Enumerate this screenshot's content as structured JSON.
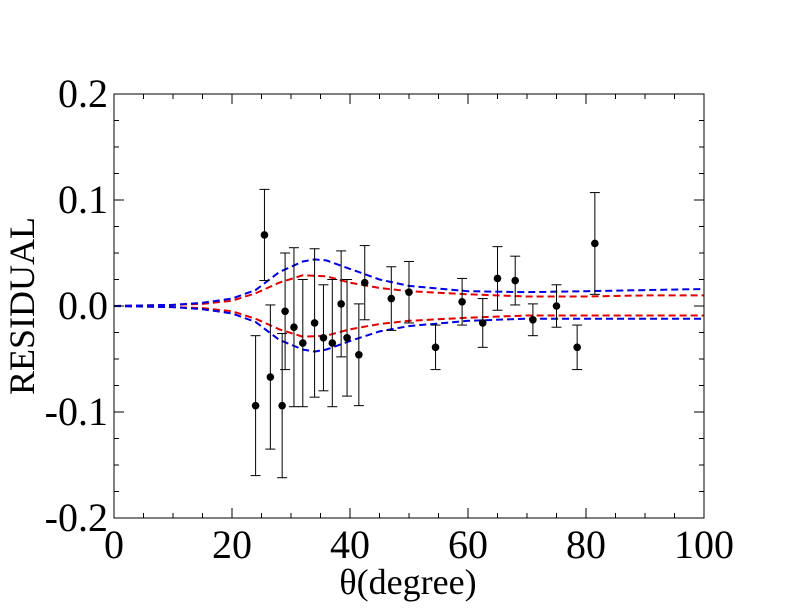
{
  "chart_data": {
    "type": "scatter",
    "title": "",
    "xlabel": "θ(degree)",
    "ylabel": "RESIDUAL",
    "xlim": [
      0,
      100
    ],
    "ylim": [
      -0.2,
      0.2
    ],
    "x_ticks": [
      0,
      20,
      40,
      60,
      80,
      100
    ],
    "x_tick_labels": [
      "0",
      "20",
      "40",
      "60",
      "80",
      "100"
    ],
    "y_ticks": [
      -0.2,
      -0.1,
      0.0,
      0.1,
      0.2
    ],
    "y_tick_labels": [
      "-0.2",
      "-0.1",
      "0.0",
      "0.1",
      "0.2"
    ],
    "grid": false,
    "points": [
      {
        "x": 24,
        "y": -0.094,
        "err": 0.066
      },
      {
        "x": 25.5,
        "y": 0.067,
        "err": 0.043
      },
      {
        "x": 26.5,
        "y": -0.067,
        "err": 0.068
      },
      {
        "x": 28.5,
        "y": -0.094,
        "err": 0.068
      },
      {
        "x": 29,
        "y": -0.005,
        "err": 0.055
      },
      {
        "x": 30.5,
        "y": -0.02,
        "err": 0.075
      },
      {
        "x": 32,
        "y": -0.035,
        "err": 0.06
      },
      {
        "x": 34,
        "y": -0.016,
        "err": 0.07
      },
      {
        "x": 35.5,
        "y": -0.03,
        "err": 0.05
      },
      {
        "x": 37,
        "y": -0.035,
        "err": 0.06
      },
      {
        "x": 38.5,
        "y": 0.002,
        "err": 0.05
      },
      {
        "x": 39.5,
        "y": -0.03,
        "err": 0.055
      },
      {
        "x": 41.5,
        "y": -0.046,
        "err": 0.048
      },
      {
        "x": 42.5,
        "y": 0.022,
        "err": 0.035
      },
      {
        "x": 47,
        "y": 0.007,
        "err": 0.03
      },
      {
        "x": 50,
        "y": 0.013,
        "err": 0.029
      },
      {
        "x": 54.5,
        "y": -0.039,
        "err": 0.021
      },
      {
        "x": 59,
        "y": 0.004,
        "err": 0.022
      },
      {
        "x": 62.5,
        "y": -0.016,
        "err": 0.023
      },
      {
        "x": 65,
        "y": 0.026,
        "err": 0.03
      },
      {
        "x": 68,
        "y": 0.024,
        "err": 0.023
      },
      {
        "x": 71,
        "y": -0.013,
        "err": 0.015
      },
      {
        "x": 75,
        "y": 0.0,
        "err": 0.02
      },
      {
        "x": 78.5,
        "y": -0.039,
        "err": 0.021
      },
      {
        "x": 81.5,
        "y": 0.059,
        "err": 0.048
      }
    ],
    "series": [
      {
        "name": "red-band-upper",
        "color": "#e00000",
        "x": [
          0,
          10,
          15,
          20,
          24,
          28,
          32,
          36,
          40,
          45,
          50,
          60,
          70,
          80,
          90,
          100
        ],
        "y": [
          0,
          0.001,
          0.002,
          0.005,
          0.012,
          0.022,
          0.029,
          0.028,
          0.022,
          0.017,
          0.014,
          0.011,
          0.009,
          0.009,
          0.01,
          0.01
        ]
      },
      {
        "name": "red-band-lower",
        "color": "#e00000",
        "x": [
          0,
          10,
          15,
          20,
          24,
          28,
          32,
          36,
          40,
          45,
          50,
          60,
          70,
          80,
          90,
          100
        ],
        "y": [
          0,
          -0.001,
          -0.002,
          -0.005,
          -0.012,
          -0.022,
          -0.029,
          -0.028,
          -0.022,
          -0.017,
          -0.014,
          -0.011,
          -0.009,
          -0.009,
          -0.009,
          -0.009
        ]
      },
      {
        "name": "blue-band-upper",
        "color": "#0000e0",
        "x": [
          0,
          10,
          15,
          20,
          24,
          28,
          32,
          34,
          36,
          40,
          45,
          50,
          60,
          70,
          80,
          90,
          100
        ],
        "y": [
          0,
          0.001,
          0.003,
          0.007,
          0.015,
          0.032,
          0.042,
          0.044,
          0.043,
          0.035,
          0.025,
          0.019,
          0.014,
          0.013,
          0.014,
          0.015,
          0.016
        ]
      },
      {
        "name": "blue-band-lower",
        "color": "#0000e0",
        "x": [
          0,
          10,
          15,
          20,
          24,
          28,
          32,
          34,
          36,
          40,
          45,
          50,
          60,
          70,
          80,
          90,
          100
        ],
        "y": [
          0,
          -0.001,
          -0.003,
          -0.007,
          -0.015,
          -0.032,
          -0.041,
          -0.043,
          -0.041,
          -0.033,
          -0.024,
          -0.019,
          -0.014,
          -0.012,
          -0.012,
          -0.012,
          -0.012
        ]
      }
    ]
  }
}
